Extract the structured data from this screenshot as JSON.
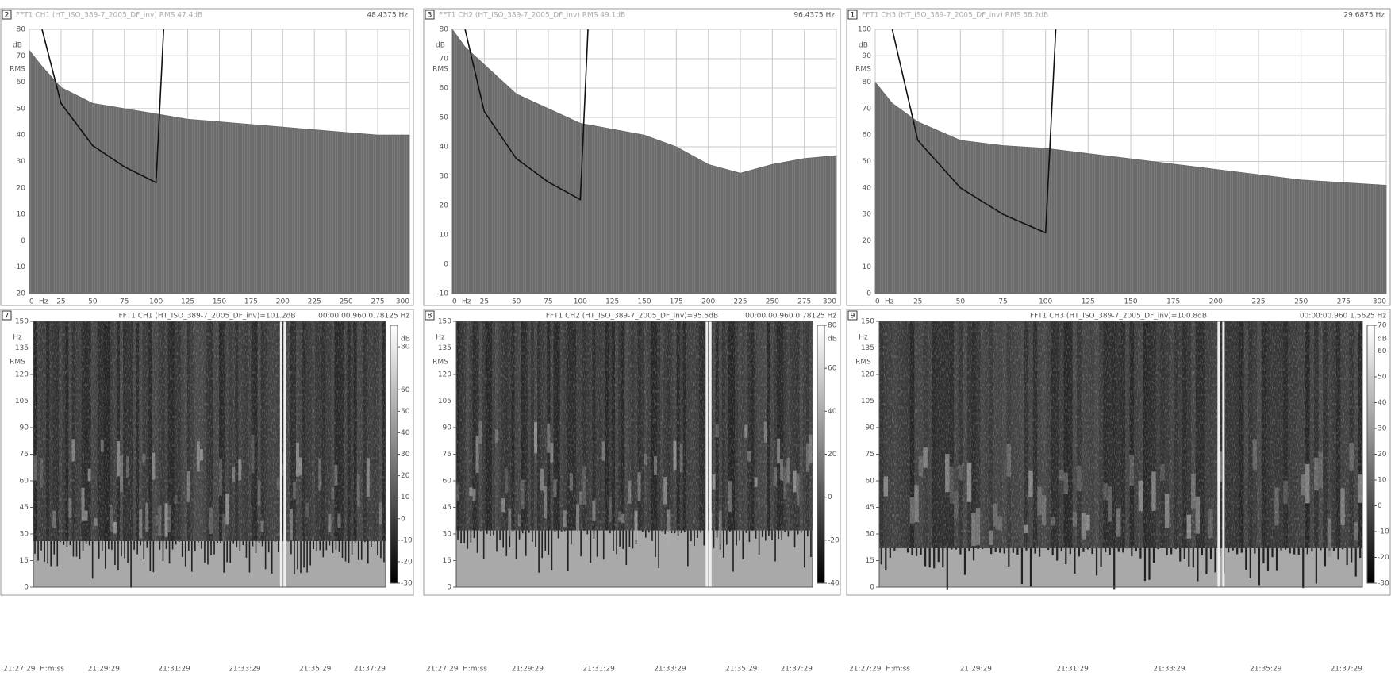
{
  "spectra": [
    {
      "index": "2",
      "header": "FFT1 CH1 (HT_ISO_389-7_2005_DF_inv) RMS 47.4dB",
      "readout": "48.4375 Hz",
      "y_unit": "dB",
      "y_unit2": "RMS",
      "x_unit": "Hz",
      "xlim": [
        0,
        300
      ],
      "xticks": [
        0,
        25,
        50,
        75,
        100,
        125,
        150,
        175,
        200,
        225,
        250,
        275,
        300
      ],
      "ylim": [
        -20,
        80
      ],
      "yticks": [
        -20,
        -10,
        0,
        10,
        20,
        30,
        40,
        50,
        60,
        70,
        80
      ],
      "spectrum": {
        "x": [
          0,
          10,
          25,
          50,
          75,
          100,
          125,
          150,
          175,
          200,
          225,
          250,
          275,
          300
        ],
        "values": [
          72,
          66,
          58,
          52,
          50,
          48,
          46,
          45,
          44,
          43,
          42,
          41,
          40,
          40
        ]
      },
      "limit_curve": {
        "x": [
          10,
          25,
          50,
          75,
          100,
          106
        ],
        "values": [
          80,
          52,
          36,
          28,
          22,
          80
        ]
      }
    },
    {
      "index": "3",
      "header": "FFT1 CH2 (HT_ISO_389-7_2005_DF_inv) RMS 49.1dB",
      "readout": "96.4375 Hz",
      "y_unit": "dB",
      "y_unit2": "RMS",
      "x_unit": "Hz",
      "xlim": [
        0,
        300
      ],
      "xticks": [
        0,
        25,
        50,
        75,
        100,
        125,
        150,
        175,
        200,
        225,
        250,
        275,
        300
      ],
      "ylim": [
        -10,
        80
      ],
      "yticks": [
        -10,
        0,
        10,
        20,
        30,
        40,
        50,
        60,
        70,
        80
      ],
      "spectrum": {
        "x": [
          0,
          10,
          25,
          50,
          75,
          100,
          125,
          150,
          175,
          200,
          225,
          250,
          275,
          300
        ],
        "values": [
          80,
          74,
          68,
          58,
          53,
          48,
          46,
          44,
          40,
          34,
          31,
          34,
          36,
          37
        ]
      },
      "limit_curve": {
        "x": [
          10,
          25,
          50,
          75,
          100,
          106
        ],
        "values": [
          80,
          52,
          36,
          28,
          22,
          80
        ]
      }
    },
    {
      "index": "1",
      "header": "FFT1 CH3 (HT_ISO_389-7_2005_DF_inv) RMS 58.2dB",
      "readout": "29.6875 Hz",
      "y_unit": "dB",
      "y_unit2": "RMS",
      "x_unit": "Hz",
      "xlim": [
        0,
        300
      ],
      "xticks": [
        0,
        25,
        50,
        75,
        100,
        125,
        150,
        175,
        200,
        225,
        250,
        275,
        300
      ],
      "ylim": [
        0,
        100
      ],
      "yticks": [
        0,
        10,
        20,
        30,
        40,
        50,
        60,
        70,
        80,
        90,
        100
      ],
      "spectrum": {
        "x": [
          0,
          10,
          25,
          50,
          75,
          100,
          125,
          150,
          175,
          200,
          225,
          250,
          275,
          300
        ],
        "values": [
          80,
          72,
          65,
          58,
          56,
          55,
          53,
          51,
          49,
          47,
          45,
          43,
          42,
          41
        ]
      },
      "limit_curve": {
        "x": [
          10,
          25,
          50,
          75,
          100,
          106
        ],
        "values": [
          100,
          58,
          40,
          30,
          23,
          100
        ]
      }
    }
  ],
  "spectrograms": [
    {
      "index": "7",
      "header": "FFT1 CH1 (HT_ISO_389-7_2005_DF_inv)=101.2dB",
      "readout": "00:00:00.960 0.78125 Hz",
      "y_unit": "Hz",
      "y_unit2": "RMS",
      "ylim": [
        0,
        150
      ],
      "yticks": [
        0,
        15,
        30,
        45,
        60,
        75,
        90,
        105,
        120,
        135,
        150
      ],
      "colorbar": {
        "unit": "dB",
        "lim": [
          -30,
          90
        ],
        "ticks": [
          -30,
          -20,
          -10,
          0,
          10,
          20,
          30,
          40,
          50,
          60,
          80
        ]
      },
      "time_unit": "H:m:ss",
      "time_labels": [
        "21:27:29",
        "21:29:29",
        "21:31:29",
        "21:33:29",
        "21:35:29",
        "21:37:29"
      ],
      "floor": 26
    },
    {
      "index": "8",
      "header": "FFT1 CH2 (HT_ISO_389-7_2005_DF_inv)=95.5dB",
      "readout": "00:00:00.960 0.78125 Hz",
      "y_unit": "Hz",
      "y_unit2": "RMS",
      "ylim": [
        0,
        150
      ],
      "yticks": [
        0,
        15,
        30,
        45,
        60,
        75,
        90,
        105,
        120,
        135,
        150
      ],
      "colorbar": {
        "unit": "dB",
        "lim": [
          -40,
          80
        ],
        "ticks": [
          -40,
          -20,
          0,
          20,
          40,
          60,
          80
        ]
      },
      "time_unit": "H:m:ss",
      "time_labels": [
        "21:27:29",
        "21:29:29",
        "21:31:29",
        "21:33:29",
        "21:35:29",
        "21:37:29"
      ],
      "floor": 32
    },
    {
      "index": "9",
      "header": "FFT1 CH3 (HT_ISO_389-7_2005_DF_inv)=100.8dB",
      "readout": "00:00:00.960 1.5625 Hz",
      "y_unit": "Hz",
      "y_unit2": "RMS",
      "ylim": [
        0,
        150
      ],
      "yticks": [
        0,
        15,
        30,
        45,
        60,
        75,
        90,
        105,
        120,
        135,
        150
      ],
      "colorbar": {
        "unit": "dB",
        "lim": [
          -30,
          70
        ],
        "ticks": [
          -30,
          -20,
          -10,
          0,
          10,
          20,
          30,
          40,
          50,
          60,
          70
        ]
      },
      "time_unit": "H:m:ss",
      "time_labels": [
        "21:27:29",
        "21:29:29",
        "21:31:29",
        "21:33:29",
        "21:35:29",
        "21:37:29"
      ],
      "floor": 22
    }
  ]
}
